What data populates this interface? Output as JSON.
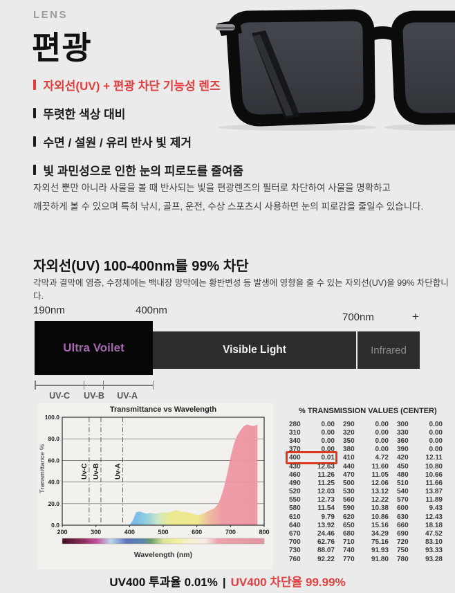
{
  "header": {
    "eyebrow": "LENS",
    "title": "편광"
  },
  "features": [
    {
      "label": "자외선(UV) + 편광 차단 기능성 렌즈",
      "highlight": true
    },
    {
      "label": "뚜렷한 색상 대비",
      "highlight": false
    },
    {
      "label": "수면 / 설원 / 유리 반사 빛 제거",
      "highlight": false
    },
    {
      "label": "빛 과민성으로 인한 눈의 피로도를 줄여줌",
      "highlight": false
    }
  ],
  "description": {
    "line1": "자외선 뿐만 아니라 사물을 볼 때 반사되는 빛을 편광렌즈의 필터로 차단하여 사물을 명확하고",
    "line2": "깨끗하게 볼 수 있으며 특히 낚시, 골프, 운전, 수상 스포츠시 사용하면 눈의 피로감을 줄일수 있습니다."
  },
  "uv_section": {
    "heading": "자외선(UV) 100-400nm를 99% 차단",
    "subtext": "각막과 결막에 염증, 수정체에는 백내장 망막에는 황반변성 등 발생에 영향을 줄 수 있는 자외선(UV)을 99% 차단합니다."
  },
  "spectrum": {
    "labels": {
      "left": "190nm",
      "mid": "400nm",
      "right": "700nm",
      "plus": "+"
    },
    "bands": [
      {
        "name": "Ultra Voilet",
        "text_color": "#a566b0",
        "bg": "#060606"
      },
      {
        "name": "Visible Light",
        "text_color": "#f2f2f2",
        "bg": "#2d2d2d"
      },
      {
        "name": "Infrared",
        "text_color": "#8d8d8d",
        "bg": "#2d2d2d"
      }
    ],
    "uv_ticks": [
      "UV-C",
      "UV-B",
      "UV-A"
    ]
  },
  "chart_data": {
    "type": "area",
    "title": "Transmittance vs Wavelength",
    "xlabel": "Wavelength  (nm)",
    "ylabel": "Transmittance  %",
    "xlim": [
      200,
      800
    ],
    "ylim": [
      0,
      100
    ],
    "xticks": [
      200,
      300,
      400,
      500,
      600,
      700,
      800
    ],
    "yticks": [
      0,
      20,
      40,
      60,
      80,
      100
    ],
    "ytick_labels": [
      "0.0",
      "20.0",
      "40.0",
      "60.0",
      "80.0",
      "100.0"
    ],
    "grid": true,
    "uv_markers": [
      {
        "label": "Uv-C",
        "x": 280
      },
      {
        "label": "Uv-B",
        "x": 315
      },
      {
        "label": "Uv-A",
        "x": 380
      }
    ],
    "x": [
      280,
      290,
      300,
      310,
      320,
      330,
      340,
      350,
      360,
      370,
      380,
      390,
      400,
      410,
      420,
      430,
      440,
      450,
      460,
      470,
      480,
      490,
      500,
      510,
      520,
      530,
      540,
      550,
      560,
      570,
      580,
      590,
      600,
      610,
      620,
      630,
      640,
      650,
      660,
      670,
      680,
      690,
      700,
      710,
      720,
      730,
      740,
      750,
      760,
      770,
      780
    ],
    "y": [
      0.0,
      0.0,
      0.0,
      0.0,
      0.0,
      0.0,
      0.0,
      0.0,
      0.0,
      0.0,
      0.0,
      0.0,
      0.01,
      4.72,
      12.11,
      12.63,
      11.6,
      10.8,
      11.26,
      11.05,
      10.66,
      11.25,
      12.06,
      11.66,
      12.03,
      13.12,
      13.87,
      12.73,
      12.22,
      11.89,
      11.54,
      10.38,
      9.43,
      9.79,
      10.86,
      12.43,
      13.92,
      15.16,
      18.18,
      24.46,
      34.29,
      47.52,
      62.76,
      75.16,
      83.1,
      88.07,
      91.93,
      93.33,
      92.22,
      91.8,
      93.28
    ]
  },
  "table": {
    "title": "% TRANSMISSION VALUES (CENTER)",
    "rows": [
      [
        "280",
        "0.00",
        "290",
        "0.00",
        "300",
        "0.00"
      ],
      [
        "310",
        "0.00",
        "320",
        "0.00",
        "330",
        "0.00"
      ],
      [
        "340",
        "0.00",
        "350",
        "0.00",
        "360",
        "0.00"
      ],
      [
        "370",
        "0.00",
        "380",
        "0.00",
        "390",
        "0.00"
      ],
      [
        "400",
        "0.01",
        "410",
        "4.72",
        "420",
        "12.11"
      ],
      [
        "430",
        "12.63",
        "440",
        "11.60",
        "450",
        "10.80"
      ],
      [
        "460",
        "11.26",
        "470",
        "11.05",
        "480",
        "10.66"
      ],
      [
        "490",
        "11.25",
        "500",
        "12.06",
        "510",
        "11.66"
      ],
      [
        "520",
        "12.03",
        "530",
        "13.12",
        "540",
        "13.87"
      ],
      [
        "550",
        "12.73",
        "560",
        "12.22",
        "570",
        "11.89"
      ],
      [
        "580",
        "11.54",
        "590",
        "10.38",
        "600",
        "9.43"
      ],
      [
        "610",
        "9.79",
        "620",
        "10.86",
        "630",
        "12.43"
      ],
      [
        "640",
        "13.92",
        "650",
        "15.16",
        "660",
        "18.18"
      ],
      [
        "670",
        "24.46",
        "680",
        "34.29",
        "690",
        "47.52"
      ],
      [
        "700",
        "62.76",
        "710",
        "75.16",
        "720",
        "83.10"
      ],
      [
        "730",
        "88.07",
        "740",
        "91.93",
        "750",
        "93.33"
      ],
      [
        "760",
        "92.22",
        "770",
        "91.80",
        "780",
        "93.28"
      ]
    ],
    "highlight": {
      "nm": "400",
      "value": "0.01"
    }
  },
  "footer": {
    "left": "UV400 투과율 0.01%",
    "divider": "|",
    "right": "UV400 차단율 99.99%"
  },
  "colors": {
    "page_bg": "#ebebeb",
    "accent_red": "#e23d3d",
    "footer_red": "#e34242",
    "highlight_box_red": "#dd3a1b",
    "ultraviolet_text": "#a566b0",
    "band_dark": "#2d2d2d",
    "band_black": "#060606",
    "chart_pink": "#ee93a2",
    "chart_blue": "#74b6e4",
    "chart_yellow": "#eee98c"
  }
}
